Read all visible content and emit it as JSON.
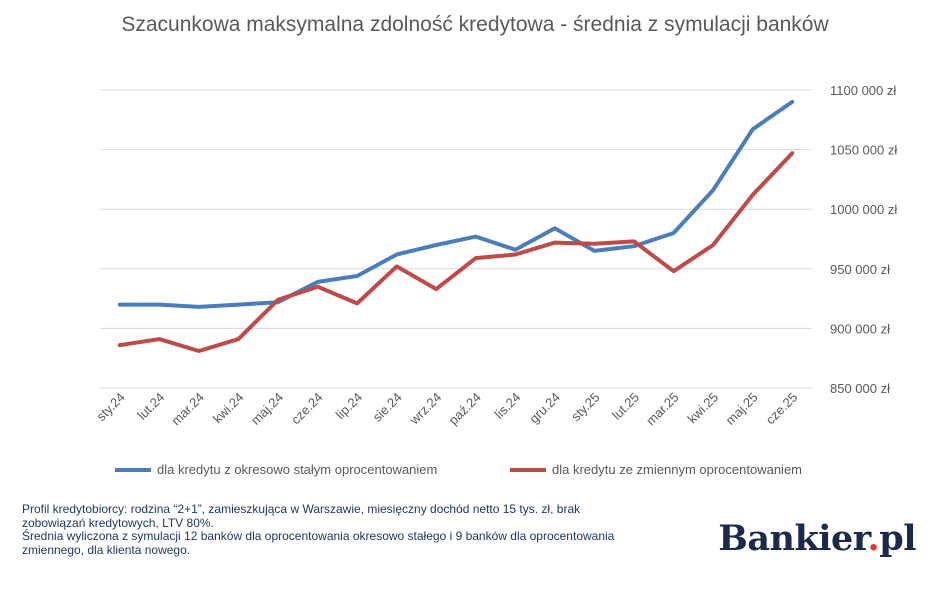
{
  "chart_data": {
    "type": "line",
    "title": "Szacunkowa maksymalna zdolność kredytowa - średnia z symulacji banków",
    "categories": [
      "sty.24",
      "lut.24",
      "mar.24",
      "kwi.24",
      "maj.24",
      "cze.24",
      "lip.24",
      "sie.24",
      "wrz.24",
      "paź.24",
      "lis.24",
      "gru.24",
      "sty.25",
      "lut.25",
      "mar.25",
      "kwi.25",
      "maj.25",
      "cze.25"
    ],
    "series": [
      {
        "name": "dla kredytu z okresowo stałym oprocentowaniem",
        "color": "#4a7ebb",
        "values": [
          920000,
          920000,
          918000,
          920000,
          922000,
          939000,
          944000,
          962000,
          970000,
          977000,
          966000,
          984000,
          965000,
          969000,
          980000,
          1016000,
          1067000,
          1090000
        ]
      },
      {
        "name": "dla kredytu ze zmiennym oprocentowaniem",
        "color": "#be4b48",
        "values": [
          886000,
          891000,
          881000,
          891000,
          924000,
          935000,
          921000,
          952000,
          933000,
          959000,
          962000,
          972000,
          971000,
          973000,
          948000,
          970000,
          1012000,
          1047000
        ]
      }
    ],
    "ylim": [
      850000,
      1100000
    ],
    "yticks": [
      850000,
      900000,
      950000,
      1000000,
      1050000,
      1100000
    ],
    "ytick_labels": [
      "850 000 zł",
      "900 000 zł",
      "950 000 zł",
      "1000 000 zł",
      "1050 000 zł",
      "1100 000 zł"
    ],
    "grid": true,
    "legend_position": "bottom",
    "xlabel": "",
    "ylabel": ""
  },
  "note": {
    "line1": "Profil kredytobiorcy: rodzina “2+1”, zamieszkująca w Warszawie, miesięczny dochód netto 15 tys. zł, brak zobowiązań kredytowych, LTV 80%.",
    "line2": "Średnia wyliczona z symulacji 12 banków dla oprocentowania okresowo stałego i 9 banków dla oprocentowania zmiennego, dla klienta nowego."
  },
  "logo": {
    "text": "Bankier",
    "dot": ".",
    "suffix": "pl"
  },
  "colors": {
    "grid": "#d9d9d9",
    "text": "#595959",
    "note": "#1f3864",
    "logo_dot": "#e5372e"
  }
}
